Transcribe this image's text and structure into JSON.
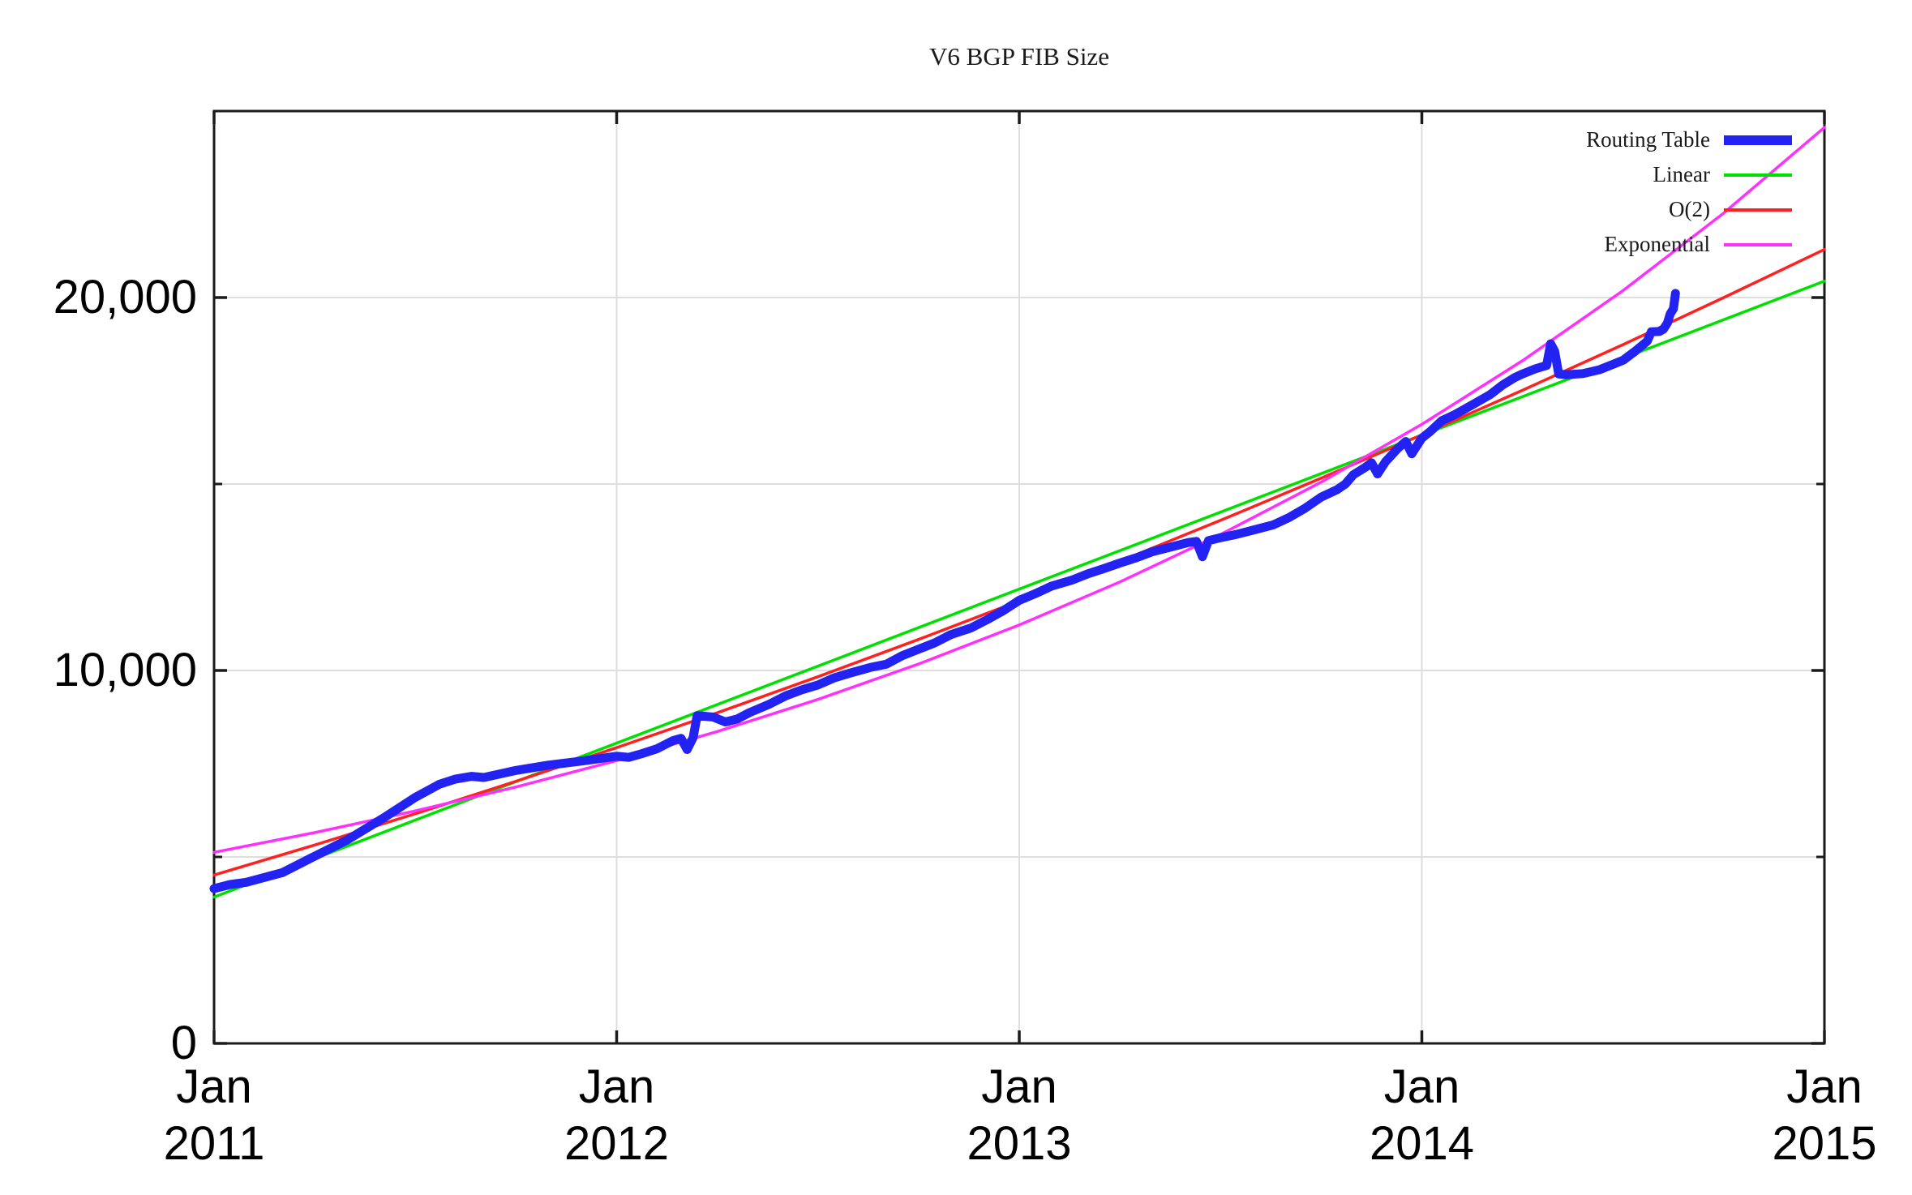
{
  "chart_data": {
    "type": "line",
    "title": "V6 BGP FIB Size",
    "xlabel": "",
    "ylabel": "",
    "xlim": [
      2011,
      2015
    ],
    "ylim": [
      0,
      25000
    ],
    "x_axis": {
      "ticks": [
        {
          "value": 2011,
          "month": "Jan",
          "year": "2011"
        },
        {
          "value": 2012,
          "month": "Jan",
          "year": "2012"
        },
        {
          "value": 2013,
          "month": "Jan",
          "year": "2013"
        },
        {
          "value": 2014,
          "month": "Jan",
          "year": "2014"
        },
        {
          "value": 2015,
          "month": "Jan",
          "year": "2015"
        }
      ]
    },
    "y_axis": {
      "ticks": [
        {
          "value": 0,
          "label": "0"
        },
        {
          "value": 10000,
          "label": "10,000"
        },
        {
          "value": 20000,
          "label": "20,000"
        }
      ],
      "minor_ticks": [
        5000,
        15000
      ]
    },
    "grid": {
      "x_values": [
        2012,
        2013,
        2014
      ],
      "y_values": [
        5000,
        10000,
        15000,
        20000
      ],
      "color": "#dedede"
    },
    "legend": {
      "position": "top-right",
      "items": [
        {
          "label": "Routing Table"
        },
        {
          "label": "Linear"
        },
        {
          "label": "O(2)"
        },
        {
          "label": "Exponential"
        }
      ]
    },
    "series": [
      {
        "name": "Routing Table",
        "color": "#2222f2",
        "width": 11,
        "points": [
          [
            2011.0,
            4150
          ],
          [
            2011.04,
            4260
          ],
          [
            2011.08,
            4320
          ],
          [
            2011.17,
            4580
          ],
          [
            2011.25,
            5020
          ],
          [
            2011.33,
            5450
          ],
          [
            2011.42,
            6040
          ],
          [
            2011.5,
            6600
          ],
          [
            2011.56,
            6950
          ],
          [
            2011.6,
            7090
          ],
          [
            2011.64,
            7160
          ],
          [
            2011.67,
            7130
          ],
          [
            2011.75,
            7320
          ],
          [
            2011.83,
            7460
          ],
          [
            2011.92,
            7580
          ],
          [
            2012.0,
            7700
          ],
          [
            2012.03,
            7670
          ],
          [
            2012.06,
            7760
          ],
          [
            2012.1,
            7900
          ],
          [
            2012.14,
            8120
          ],
          [
            2012.16,
            8180
          ],
          [
            2012.175,
            7880
          ],
          [
            2012.19,
            8200
          ],
          [
            2012.2,
            8790
          ],
          [
            2012.24,
            8750
          ],
          [
            2012.27,
            8620
          ],
          [
            2012.3,
            8700
          ],
          [
            2012.33,
            8870
          ],
          [
            2012.38,
            9100
          ],
          [
            2012.42,
            9320
          ],
          [
            2012.46,
            9480
          ],
          [
            2012.5,
            9610
          ],
          [
            2012.54,
            9800
          ],
          [
            2012.58,
            9930
          ],
          [
            2012.63,
            10080
          ],
          [
            2012.67,
            10170
          ],
          [
            2012.71,
            10400
          ],
          [
            2012.75,
            10570
          ],
          [
            2012.79,
            10740
          ],
          [
            2012.83,
            10960
          ],
          [
            2012.88,
            11140
          ],
          [
            2012.92,
            11360
          ],
          [
            2012.96,
            11600
          ],
          [
            2013.0,
            11880
          ],
          [
            2013.04,
            12060
          ],
          [
            2013.08,
            12260
          ],
          [
            2013.13,
            12420
          ],
          [
            2013.17,
            12590
          ],
          [
            2013.21,
            12730
          ],
          [
            2013.25,
            12880
          ],
          [
            2013.29,
            13020
          ],
          [
            2013.33,
            13180
          ],
          [
            2013.38,
            13320
          ],
          [
            2013.42,
            13430
          ],
          [
            2013.44,
            13460
          ],
          [
            2013.455,
            13050
          ],
          [
            2013.47,
            13480
          ],
          [
            2013.5,
            13560
          ],
          [
            2013.54,
            13650
          ],
          [
            2013.58,
            13760
          ],
          [
            2013.63,
            13900
          ],
          [
            2013.67,
            14100
          ],
          [
            2013.71,
            14350
          ],
          [
            2013.75,
            14650
          ],
          [
            2013.79,
            14850
          ],
          [
            2013.81,
            15000
          ],
          [
            2013.83,
            15250
          ],
          [
            2013.86,
            15450
          ],
          [
            2013.875,
            15570
          ],
          [
            2013.89,
            15270
          ],
          [
            2013.91,
            15600
          ],
          [
            2013.94,
            15950
          ],
          [
            2013.96,
            16140
          ],
          [
            2013.975,
            15810
          ],
          [
            2014.0,
            16230
          ],
          [
            2014.02,
            16400
          ],
          [
            2014.05,
            16700
          ],
          [
            2014.08,
            16850
          ],
          [
            2014.13,
            17150
          ],
          [
            2014.17,
            17400
          ],
          [
            2014.2,
            17650
          ],
          [
            2014.23,
            17850
          ],
          [
            2014.25,
            17950
          ],
          [
            2014.28,
            18080
          ],
          [
            2014.31,
            18180
          ],
          [
            2014.32,
            18760
          ],
          [
            2014.33,
            18560
          ],
          [
            2014.34,
            17950
          ],
          [
            2014.36,
            17930
          ],
          [
            2014.4,
            17960
          ],
          [
            2014.44,
            18060
          ],
          [
            2014.48,
            18230
          ],
          [
            2014.5,
            18320
          ],
          [
            2014.53,
            18560
          ],
          [
            2014.56,
            18830
          ],
          [
            2014.57,
            19080
          ],
          [
            2014.59,
            19090
          ],
          [
            2014.6,
            19150
          ],
          [
            2014.61,
            19320
          ],
          [
            2014.617,
            19560
          ],
          [
            2014.625,
            19700
          ],
          [
            2014.63,
            20110
          ]
        ]
      },
      {
        "name": "Linear",
        "color": "#00e000",
        "width": 3.5,
        "points": [
          [
            2011.0,
            3925
          ],
          [
            2015.0,
            20440
          ]
        ]
      },
      {
        "name": "O(2)",
        "color": "#ff2020",
        "width": 3.5,
        "points": [
          [
            2011.0,
            4515
          ],
          [
            2011.25,
            5320
          ],
          [
            2011.5,
            6158
          ],
          [
            2011.75,
            7028
          ],
          [
            2012.0,
            7930
          ],
          [
            2012.25,
            8865
          ],
          [
            2012.5,
            9833
          ],
          [
            2012.75,
            10832
          ],
          [
            2013.0,
            11865
          ],
          [
            2013.25,
            12929
          ],
          [
            2013.5,
            14026
          ],
          [
            2013.75,
            15156
          ],
          [
            2014.0,
            16318
          ],
          [
            2014.25,
            17512
          ],
          [
            2014.5,
            18739
          ],
          [
            2014.75,
            19999
          ],
          [
            2015.0,
            21290
          ]
        ]
      },
      {
        "name": "Exponential",
        "color": "#ff30ff",
        "width": 3.5,
        "points": [
          [
            2011.0,
            5125
          ],
          [
            2011.25,
            5652
          ],
          [
            2011.5,
            6234
          ],
          [
            2011.75,
            6876
          ],
          [
            2012.0,
            7583
          ],
          [
            2012.25,
            8364
          ],
          [
            2012.5,
            9224
          ],
          [
            2012.75,
            10173
          ],
          [
            2013.0,
            11220
          ],
          [
            2013.25,
            12374
          ],
          [
            2013.5,
            13647
          ],
          [
            2013.75,
            15051
          ],
          [
            2014.0,
            16600
          ],
          [
            2014.25,
            18307
          ],
          [
            2014.5,
            20190
          ],
          [
            2014.75,
            22267
          ],
          [
            2015.0,
            24560
          ]
        ]
      }
    ]
  }
}
